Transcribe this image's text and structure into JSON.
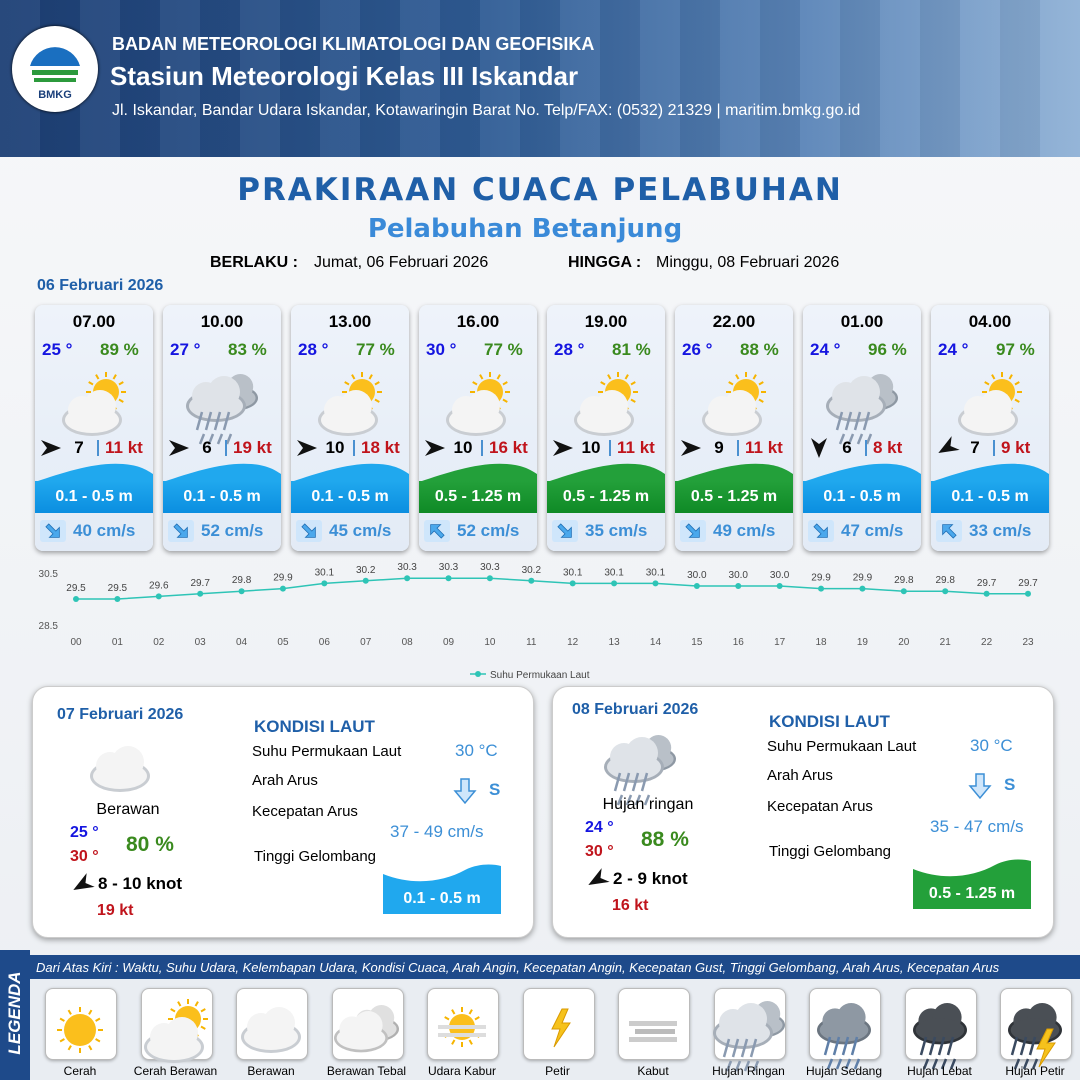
{
  "header": {
    "logo": "BMKG",
    "org": "BADAN METEOROLOGI KLIMATOLOGI DAN GEOFISIKA",
    "station": "Stasiun Meteorologi Kelas III Iskandar",
    "address": "Jl. Iskandar, Bandar Udara Iskandar, Kotawaringin Barat No. Telp/FAX: (0532) 21329 | maritim.bmkg.go.id"
  },
  "title": "PRAKIRAAN CUACA PELABUHAN",
  "subtitle": "Pelabuhan Betanjung",
  "validity": {
    "from_label": "BERLAKU :",
    "from": "Jumat, 06 Februari 2026",
    "to_label": "HINGGA :",
    "to": "Minggu, 08 Februari 2026"
  },
  "forecast_date": "06 Februari 2026",
  "forecasts": [
    {
      "time": "07.00",
      "temp": "25 °",
      "humidity": "89 %",
      "wind": "7",
      "gust": "11 kt",
      "wave": "0.1 - 0.5 m",
      "current": "40 cm/s"
    },
    {
      "time": "10.00",
      "temp": "27 °",
      "humidity": "83 %",
      "wind": "6",
      "gust": "19 kt",
      "wave": "0.1 - 0.5 m",
      "current": "52 cm/s"
    },
    {
      "time": "13.00",
      "temp": "28 °",
      "humidity": "77 %",
      "wind": "10",
      "gust": "18 kt",
      "wave": "0.1 - 0.5 m",
      "current": "45 cm/s"
    },
    {
      "time": "16.00",
      "temp": "30 °",
      "humidity": "77 %",
      "wind": "10",
      "gust": "16 kt",
      "wave": "0.5 - 1.25 m",
      "current": "52 cm/s"
    },
    {
      "time": "19.00",
      "temp": "28 °",
      "humidity": "81 %",
      "wind": "10",
      "gust": "11 kt",
      "wave": "0.5 - 1.25 m",
      "current": "35 cm/s"
    },
    {
      "time": "22.00",
      "temp": "26 °",
      "humidity": "88 %",
      "wind": "9",
      "gust": "11 kt",
      "wave": "0.5 - 1.25 m",
      "current": "49 cm/s"
    },
    {
      "time": "01.00",
      "temp": "24 °",
      "humidity": "96 %",
      "wind": "6",
      "gust": "8 kt",
      "wave": "0.1 - 0.5 m",
      "current": "47 cm/s"
    },
    {
      "time": "04.00",
      "temp": "24 °",
      "humidity": "97 %",
      "wind": "7",
      "gust": "9 kt",
      "wave": "0.1 - 0.5 m",
      "current": "33 cm/s"
    }
  ],
  "chart_data": {
    "type": "line",
    "categories": [
      "00",
      "01",
      "02",
      "03",
      "04",
      "05",
      "06",
      "07",
      "08",
      "09",
      "10",
      "11",
      "12",
      "13",
      "14",
      "15",
      "16",
      "17",
      "18",
      "19",
      "20",
      "21",
      "22",
      "23"
    ],
    "series": [
      {
        "name": "Suhu Permukaan Laut",
        "color": "#2ec4b6",
        "values": [
          29.5,
          29.5,
          29.6,
          29.7,
          29.8,
          29.9,
          30.1,
          30.2,
          30.3,
          30.3,
          30.3,
          30.2,
          30.1,
          30.1,
          30.1,
          30.0,
          30.0,
          30.0,
          29.9,
          29.9,
          29.8,
          29.8,
          29.7,
          29.7
        ],
        "value_labels": [
          "29.5",
          "29.5",
          "29.6",
          "29.7",
          "29.8",
          "29.9",
          "30.1",
          "30.2",
          "30.3",
          "30.3",
          "30.3",
          "30.2",
          "30.1",
          "30.1",
          "30.1",
          "30.0",
          "30.0",
          "30.0",
          "29.9",
          "29.9",
          "29.8",
          "29.8",
          "29.7",
          "29.7"
        ]
      }
    ],
    "ylim": [
      28.5,
      30.5
    ],
    "yticks": [
      28.5,
      30.5
    ],
    "grid": false,
    "legend": "bottom"
  },
  "days": [
    {
      "date": "07 Februari 2026",
      "condition": "Berawan",
      "temp_min": "25 °",
      "temp_max": "30 °",
      "humidity": "80 %",
      "wind": "8  - 10 knot",
      "gust": "19 kt",
      "sea_title": "KONDISI LAUT",
      "sst_label": "Suhu Permukaan Laut",
      "sst": "30 °C",
      "dir_label": "Arah Arus",
      "dir": "S",
      "speed_label": "Kecepatan Arus",
      "speed": "37  - 49 cm/s",
      "wave_label": "Tinggi Gelombang",
      "wave": "0.1 - 0.5 m"
    },
    {
      "date": "08 Februari 2026",
      "condition": "Hujan ringan",
      "temp_min": "24 °",
      "temp_max": "30 °",
      "humidity": "88 %",
      "wind": "2  - 9 knot",
      "gust": "16 kt",
      "sea_title": "KONDISI LAUT",
      "sst_label": "Suhu Permukaan Laut",
      "sst": "30 °C",
      "dir_label": "Arah Arus",
      "dir": "S",
      "speed_label": "Kecepatan Arus",
      "speed": "35 - 47 cm/s",
      "wave_label": "Tinggi Gelombang",
      "wave": "0.5 - 1.25 m"
    }
  ],
  "legend": {
    "title": "LEGENDA",
    "note": "Dari Atas Kiri : Waktu, Suhu Udara, Kelembapan Udara, Kondisi Cuaca, Arah Angin, Kecepatan Angin, Kecepatan Gust, Tinggi Gelombang, Arah Arus, Kecepatan Arus",
    "items": [
      "Cerah",
      "Cerah Berawan",
      "Berawan",
      "Berawan Tebal",
      "Udara Kabur",
      "Petir",
      "Kabut",
      "Hujan Ringan",
      "Hujan Sedang",
      "Hujan Lebat",
      "Hujan Petir"
    ]
  }
}
